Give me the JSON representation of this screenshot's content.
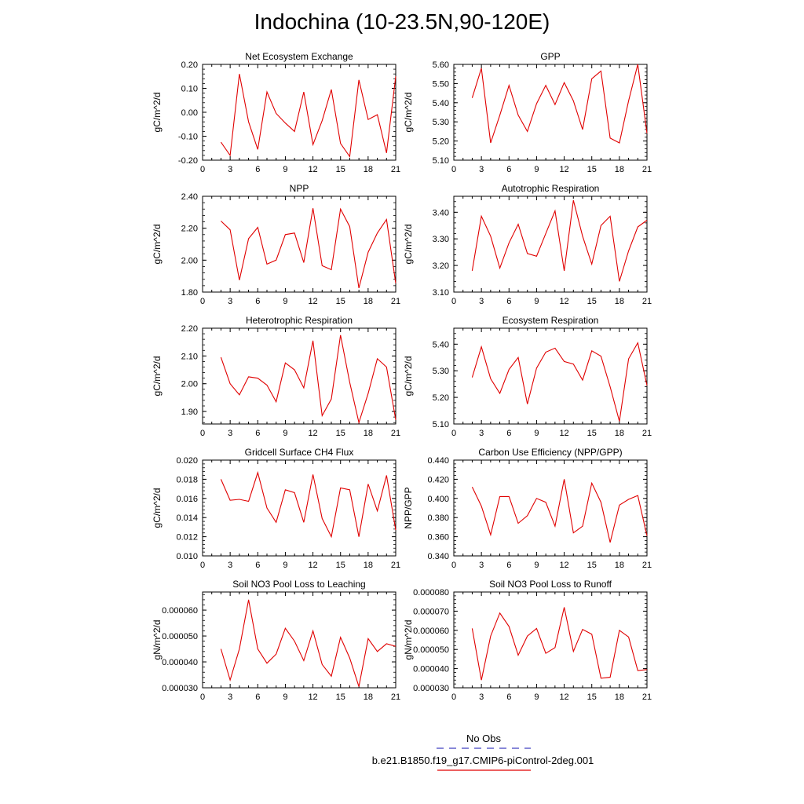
{
  "title": "Indochina (10-23.5N,90-120E)",
  "legend": {
    "obs_label": "No Obs",
    "obs_color": "#4040c0",
    "case_label": "b.e21.B1850.f19_g17.CMIP6-piControl-2deg.001",
    "case_color": "#e00000"
  },
  "chart_data": [
    {
      "type": "line",
      "title": "Net Ecosystem Exchange",
      "ylabel": "gC/m^2/d",
      "xlim": [
        0,
        21
      ],
      "ylim": [
        -0.2,
        0.2
      ],
      "xticks": [
        0,
        3,
        6,
        9,
        12,
        15,
        18,
        21
      ],
      "yticks": [
        "-0.20",
        "-0.10",
        "0.00",
        "0.10",
        "0.20"
      ],
      "x": [
        2,
        3,
        4,
        5,
        6,
        7,
        8,
        9,
        10,
        11,
        12,
        13,
        14,
        15,
        16,
        17,
        18,
        19,
        20,
        21
      ],
      "series": [
        {
          "values": [
            -0.125,
            -0.18,
            0.16,
            -0.04,
            -0.155,
            0.085,
            -0.005,
            -0.045,
            -0.08,
            0.085,
            -0.135,
            -0.035,
            0.095,
            -0.13,
            -0.185,
            0.135,
            -0.03,
            -0.01,
            -0.17,
            0.15
          ]
        }
      ]
    },
    {
      "type": "line",
      "title": "GPP",
      "ylabel": "gC/m^2/d",
      "xlim": [
        0,
        21
      ],
      "ylim": [
        5.1,
        5.6
      ],
      "xticks": [
        0,
        3,
        6,
        9,
        12,
        15,
        18,
        21
      ],
      "yticks": [
        "5.10",
        "5.20",
        "5.30",
        "5.40",
        "5.50",
        "5.60"
      ],
      "x": [
        2,
        3,
        4,
        5,
        6,
        7,
        8,
        9,
        10,
        11,
        12,
        13,
        14,
        15,
        16,
        17,
        18,
        19,
        20,
        21
      ],
      "series": [
        {
          "values": [
            5.425,
            5.58,
            5.19,
            5.335,
            5.49,
            5.335,
            5.25,
            5.395,
            5.49,
            5.39,
            5.505,
            5.41,
            5.26,
            5.525,
            5.565,
            5.215,
            5.19,
            5.41,
            5.6,
            5.24
          ]
        }
      ]
    },
    {
      "type": "line",
      "title": "NPP",
      "ylabel": "gC/m^2/d",
      "xlim": [
        0,
        21
      ],
      "ylim": [
        1.8,
        2.4
      ],
      "xticks": [
        0,
        3,
        6,
        9,
        12,
        15,
        18,
        21
      ],
      "yticks": [
        "1.80",
        "2.00",
        "2.20",
        "2.40"
      ],
      "x": [
        2,
        3,
        4,
        5,
        6,
        7,
        8,
        9,
        10,
        11,
        12,
        13,
        14,
        15,
        16,
        17,
        18,
        19,
        20,
        21
      ],
      "series": [
        {
          "values": [
            2.245,
            2.19,
            1.875,
            2.135,
            2.205,
            1.975,
            2.0,
            2.16,
            2.17,
            1.985,
            2.325,
            1.965,
            1.94,
            2.32,
            2.21,
            1.825,
            2.05,
            2.17,
            2.255,
            1.855
          ]
        }
      ]
    },
    {
      "type": "line",
      "title": "Autotrophic Respiration",
      "ylabel": "gC/m^2/d",
      "xlim": [
        0,
        21
      ],
      "ylim": [
        3.1,
        3.46
      ],
      "xticks": [
        0,
        3,
        6,
        9,
        12,
        15,
        18,
        21
      ],
      "yticks": [
        "3.10",
        "3.20",
        "3.30",
        "3.40"
      ],
      "x": [
        2,
        3,
        4,
        5,
        6,
        7,
        8,
        9,
        10,
        11,
        12,
        13,
        14,
        15,
        16,
        17,
        18,
        19,
        20,
        21
      ],
      "series": [
        {
          "values": [
            3.18,
            3.385,
            3.31,
            3.19,
            3.285,
            3.355,
            3.245,
            3.235,
            3.32,
            3.405,
            3.18,
            3.445,
            3.31,
            3.205,
            3.35,
            3.385,
            3.14,
            3.255,
            3.345,
            3.37
          ]
        }
      ]
    },
    {
      "type": "line",
      "title": "Heterotrophic Respiration",
      "ylabel": "gC/m^2/d",
      "xlim": [
        0,
        21
      ],
      "ylim": [
        1.855,
        2.2
      ],
      "xticks": [
        0,
        3,
        6,
        9,
        12,
        15,
        18,
        21
      ],
      "yticks": [
        "1.90",
        "2.00",
        "2.10",
        "2.20"
      ],
      "x": [
        2,
        3,
        4,
        5,
        6,
        7,
        8,
        9,
        10,
        11,
        12,
        13,
        14,
        15,
        16,
        17,
        18,
        19,
        20,
        21
      ],
      "series": [
        {
          "values": [
            2.095,
            2.0,
            1.96,
            2.025,
            2.02,
            1.995,
            1.935,
            2.075,
            2.05,
            1.985,
            2.155,
            1.885,
            1.945,
            2.175,
            2.005,
            1.86,
            1.965,
            2.09,
            2.06,
            1.87
          ]
        }
      ]
    },
    {
      "type": "line",
      "title": "Ecosystem Respiration",
      "ylabel": "gC/m^2/d",
      "xlim": [
        0,
        21
      ],
      "ylim": [
        5.1,
        5.46
      ],
      "xticks": [
        0,
        3,
        6,
        9,
        12,
        15,
        18,
        21
      ],
      "yticks": [
        "5.10",
        "5.20",
        "5.30",
        "5.40"
      ],
      "x": [
        2,
        3,
        4,
        5,
        6,
        7,
        8,
        9,
        10,
        11,
        12,
        13,
        14,
        15,
        16,
        17,
        18,
        19,
        20,
        21
      ],
      "series": [
        {
          "values": [
            5.275,
            5.39,
            5.27,
            5.215,
            5.305,
            5.35,
            5.175,
            5.31,
            5.37,
            5.385,
            5.335,
            5.325,
            5.265,
            5.375,
            5.355,
            5.24,
            5.11,
            5.345,
            5.405,
            5.245
          ]
        }
      ]
    },
    {
      "type": "line",
      "title": "Gridcell Surface CH4 Flux",
      "ylabel": "gC/m^2/d",
      "xlim": [
        0,
        21
      ],
      "ylim": [
        0.01,
        0.02
      ],
      "xticks": [
        0,
        3,
        6,
        9,
        12,
        15,
        18,
        21
      ],
      "yticks": [
        "0.010",
        "0.012",
        "0.014",
        "0.016",
        "0.018",
        "0.020"
      ],
      "x": [
        2,
        3,
        4,
        5,
        6,
        7,
        8,
        9,
        10,
        11,
        12,
        13,
        14,
        15,
        16,
        17,
        18,
        19,
        20,
        21
      ],
      "series": [
        {
          "values": [
            0.018,
            0.0158,
            0.0159,
            0.0157,
            0.0187,
            0.015,
            0.0135,
            0.0169,
            0.0166,
            0.0135,
            0.0185,
            0.0139,
            0.012,
            0.0171,
            0.0169,
            0.012,
            0.0175,
            0.0147,
            0.0184,
            0.0127
          ]
        }
      ]
    },
    {
      "type": "line",
      "title": "Carbon Use Efficiency (NPP/GPP)",
      "ylabel": "NPP/GPP",
      "xlim": [
        0,
        21
      ],
      "ylim": [
        0.34,
        0.44
      ],
      "xticks": [
        0,
        3,
        6,
        9,
        12,
        15,
        18,
        21
      ],
      "yticks": [
        "0.340",
        "0.360",
        "0.380",
        "0.400",
        "0.420",
        "0.440"
      ],
      "x": [
        2,
        3,
        4,
        5,
        6,
        7,
        8,
        9,
        10,
        11,
        12,
        13,
        14,
        15,
        16,
        17,
        18,
        19,
        20,
        21
      ],
      "series": [
        {
          "values": [
            0.412,
            0.392,
            0.362,
            0.402,
            0.402,
            0.374,
            0.382,
            0.4,
            0.396,
            0.371,
            0.42,
            0.364,
            0.371,
            0.416,
            0.396,
            0.354,
            0.393,
            0.399,
            0.403,
            0.361
          ]
        }
      ]
    },
    {
      "type": "line",
      "title": "Soil NO3 Pool Loss to Leaching",
      "ylabel": "gN/m^2/d",
      "xlim": [
        0,
        21
      ],
      "ylim": [
        3e-05,
        6.7e-05
      ],
      "xticks": [
        0,
        3,
        6,
        9,
        12,
        15,
        18,
        21
      ],
      "yticks": [
        "0.000030",
        "0.000040",
        "0.000050",
        "0.000060"
      ],
      "x": [
        2,
        3,
        4,
        5,
        6,
        7,
        8,
        9,
        10,
        11,
        12,
        13,
        14,
        15,
        16,
        17,
        18,
        19,
        20,
        21
      ],
      "series": [
        {
          "values": [
            4.5e-05,
            3.3e-05,
            4.5e-05,
            6.4e-05,
            4.5e-05,
            3.95e-05,
            4.3e-05,
            5.3e-05,
            4.8e-05,
            4.05e-05,
            5.2e-05,
            3.9e-05,
            3.45e-05,
            4.95e-05,
            4.15e-05,
            3.05e-05,
            4.9e-05,
            4.4e-05,
            4.7e-05,
            4.6e-05
          ]
        }
      ]
    },
    {
      "type": "line",
      "title": "Soil NO3 Pool Loss to Runoff",
      "ylabel": "gN/m^2/d",
      "xlim": [
        0,
        21
      ],
      "ylim": [
        3e-05,
        8e-05
      ],
      "xticks": [
        0,
        3,
        6,
        9,
        12,
        15,
        18,
        21
      ],
      "yticks": [
        "0.000030",
        "0.000040",
        "0.000050",
        "0.000060",
        "0.000070",
        "0.000080"
      ],
      "x": [
        2,
        3,
        4,
        5,
        6,
        7,
        8,
        9,
        10,
        11,
        12,
        13,
        14,
        15,
        16,
        17,
        18,
        19,
        20,
        21
      ],
      "series": [
        {
          "values": [
            6.1e-05,
            3.4e-05,
            5.7e-05,
            6.9e-05,
            6.2e-05,
            4.7e-05,
            5.7e-05,
            6.1e-05,
            4.8e-05,
            5.1e-05,
            7.2e-05,
            4.9e-05,
            6.05e-05,
            5.8e-05,
            3.5e-05,
            3.55e-05,
            6e-05,
            5.65e-05,
            3.9e-05,
            3.95e-05
          ]
        }
      ]
    }
  ]
}
